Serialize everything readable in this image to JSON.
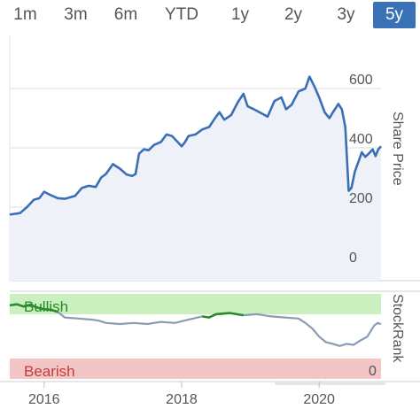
{
  "ranges": [
    "1m",
    "3m",
    "6m",
    "YTD",
    "1y",
    "2y",
    "3y",
    "5y"
  ],
  "active_range": "5y",
  "share_axis_label": "Share Price",
  "rank_axis_label": "StockRank",
  "colors": {
    "price_line": "#3a6fb5",
    "price_fill": "#eef1f7",
    "rank_line": "#8a9bb4",
    "bullish_band": "#c9f0be",
    "bullish_text": "#2a8a2a",
    "bearish_band": "#f2c6c6",
    "bearish_text": "#c63a3a",
    "active_tab": "#3a72b8"
  },
  "chart_data": [
    {
      "type": "line",
      "ylabel": "Share Price",
      "ylim": [
        0,
        650
      ],
      "yticks": [
        0,
        200,
        400,
        600
      ],
      "xticks": [
        2016,
        2018,
        2020
      ],
      "series": [
        {
          "values": [
            [
              2015.5,
              175
            ],
            [
              2015.65,
              180
            ],
            [
              2015.75,
              200
            ],
            [
              2015.85,
              225
            ],
            [
              2015.93,
              230
            ],
            [
              2016.0,
              252
            ],
            [
              2016.1,
              240
            ],
            [
              2016.2,
              230
            ],
            [
              2016.3,
              228
            ],
            [
              2016.45,
              238
            ],
            [
              2016.55,
              265
            ],
            [
              2016.65,
              272
            ],
            [
              2016.75,
              268
            ],
            [
              2016.83,
              300
            ],
            [
              2016.9,
              312
            ],
            [
              2017.0,
              345
            ],
            [
              2017.1,
              330
            ],
            [
              2017.2,
              310
            ],
            [
              2017.28,
              305
            ],
            [
              2017.33,
              312
            ],
            [
              2017.38,
              380
            ],
            [
              2017.45,
              395
            ],
            [
              2017.52,
              392
            ],
            [
              2017.6,
              410
            ],
            [
              2017.7,
              420
            ],
            [
              2017.78,
              445
            ],
            [
              2017.86,
              440
            ],
            [
              2017.95,
              418
            ],
            [
              2018.0,
              405
            ],
            [
              2018.05,
              420
            ],
            [
              2018.1,
              440
            ],
            [
              2018.2,
              445
            ],
            [
              2018.3,
              462
            ],
            [
              2018.4,
              470
            ],
            [
              2018.5,
              505
            ],
            [
              2018.55,
              520
            ],
            [
              2018.62,
              495
            ],
            [
              2018.72,
              510
            ],
            [
              2018.82,
              555
            ],
            [
              2018.9,
              582
            ],
            [
              2018.96,
              540
            ],
            [
              2019.05,
              530
            ],
            [
              2019.15,
              518
            ],
            [
              2019.25,
              505
            ],
            [
              2019.35,
              558
            ],
            [
              2019.45,
              570
            ],
            [
              2019.52,
              530
            ],
            [
              2019.6,
              545
            ],
            [
              2019.7,
              590
            ],
            [
              2019.8,
              600
            ],
            [
              2019.86,
              640
            ],
            [
              2019.93,
              608
            ],
            [
              2020.0,
              570
            ],
            [
              2020.08,
              520
            ],
            [
              2020.15,
              500
            ],
            [
              2020.2,
              520
            ],
            [
              2020.28,
              548
            ],
            [
              2020.33,
              530
            ],
            [
              2020.38,
              470
            ],
            [
              2020.43,
              255
            ],
            [
              2020.47,
              265
            ],
            [
              2020.52,
              320
            ],
            [
              2020.57,
              352
            ],
            [
              2020.62,
              385
            ],
            [
              2020.67,
              370
            ],
            [
              2020.72,
              380
            ],
            [
              2020.78,
              395
            ],
            [
              2020.82,
              372
            ],
            [
              2020.86,
              395
            ],
            [
              2020.9,
              405
            ]
          ]
        }
      ]
    },
    {
      "type": "line",
      "ylabel": "StockRank",
      "ylim": [
        0,
        100
      ],
      "yticks": [
        0
      ],
      "annotations": [
        "Bullish",
        "Bearish"
      ],
      "series": [
        {
          "values": [
            [
              2015.5,
              92
            ],
            [
              2015.6,
              94
            ],
            [
              2015.7,
              90
            ],
            [
              2015.8,
              93
            ],
            [
              2015.9,
              88
            ],
            [
              2016.0,
              85
            ],
            [
              2016.1,
              84
            ],
            [
              2016.2,
              80
            ],
            [
              2016.3,
              70
            ],
            [
              2016.5,
              68
            ],
            [
              2016.7,
              66
            ],
            [
              2016.8,
              64
            ],
            [
              2016.9,
              60
            ],
            [
              2017.1,
              58
            ],
            [
              2017.3,
              60
            ],
            [
              2017.5,
              58
            ],
            [
              2017.7,
              62
            ],
            [
              2017.9,
              60
            ],
            [
              2018.1,
              66
            ],
            [
              2018.3,
              72
            ],
            [
              2018.4,
              70
            ],
            [
              2018.5,
              76
            ],
            [
              2018.7,
              78
            ],
            [
              2018.9,
              74
            ],
            [
              2019.1,
              76
            ],
            [
              2019.3,
              72
            ],
            [
              2019.5,
              70
            ],
            [
              2019.7,
              68
            ],
            [
              2019.8,
              60
            ],
            [
              2019.9,
              50
            ],
            [
              2020.0,
              35
            ],
            [
              2020.1,
              25
            ],
            [
              2020.2,
              22
            ],
            [
              2020.3,
              18
            ],
            [
              2020.4,
              22
            ],
            [
              2020.5,
              20
            ],
            [
              2020.6,
              28
            ],
            [
              2020.7,
              35
            ],
            [
              2020.8,
              55
            ],
            [
              2020.85,
              60
            ],
            [
              2020.9,
              58
            ]
          ],
          "bullish_segments": [
            [
              2015.5,
              2016.2
            ],
            [
              2018.3,
              2019.0
            ]
          ]
        }
      ]
    }
  ]
}
